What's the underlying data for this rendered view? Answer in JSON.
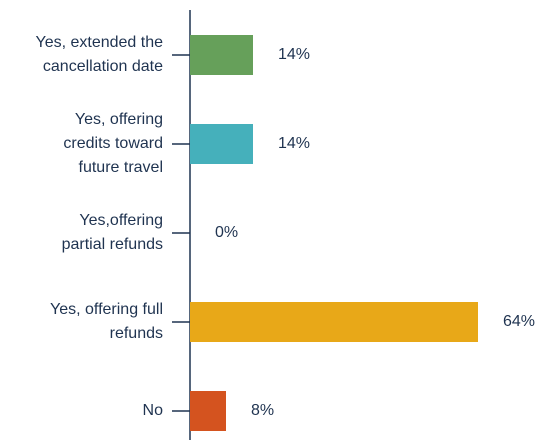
{
  "chart_data": {
    "type": "bar",
    "orientation": "horizontal",
    "categories": [
      "Yes, extended the\ncancellation date",
      "Yes, offering\ncredits toward\nfuture travel",
      "Yes,offering\npartial refunds",
      "Yes, offering full\nrefunds",
      "No"
    ],
    "values": [
      14,
      14,
      0,
      64,
      8
    ],
    "value_labels": [
      "14%",
      "14%",
      "0%",
      "64%",
      "8%"
    ],
    "colors": [
      "#66a05a",
      "#45b0bb",
      "#45b0bb",
      "#e8a818",
      "#d4531f"
    ]
  }
}
